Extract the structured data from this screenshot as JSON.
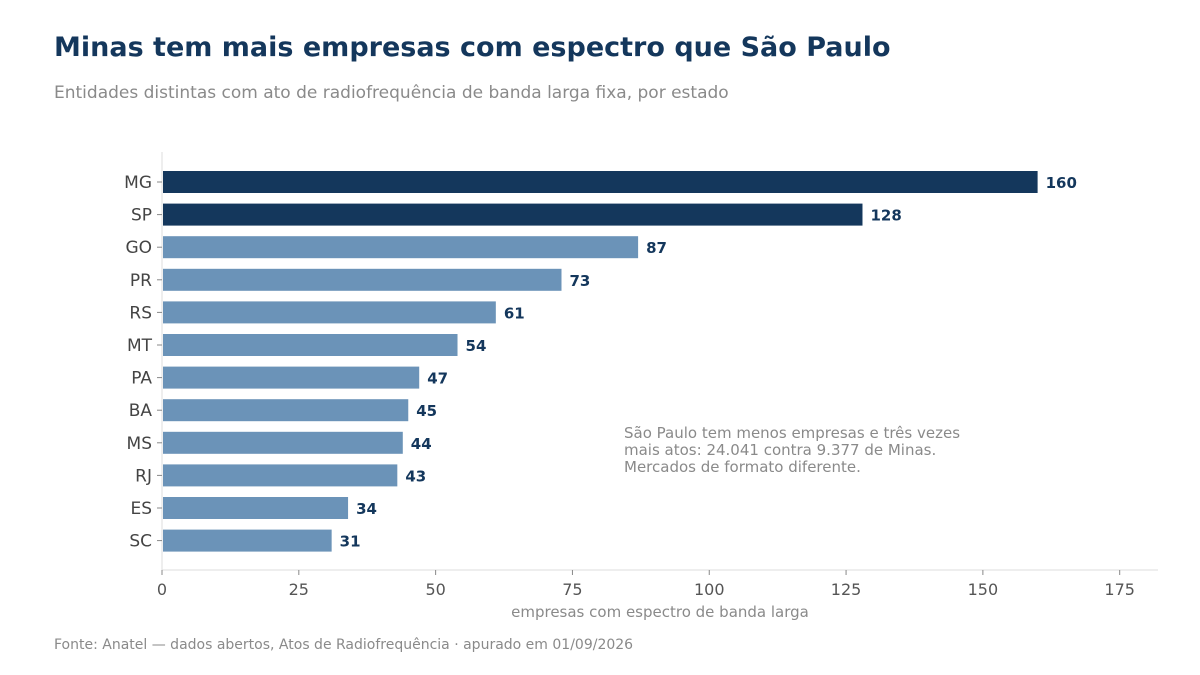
{
  "header": {
    "title": "Minas tem mais empresas com espectro que São Paulo",
    "subtitle": "Entidades distintas com ato de radiofrequência de banda larga fixa, por estado"
  },
  "footer": {
    "source": "Fonte: Anatel — dados abertos, Atos de Radiofrequência · apurado em 01/09/2026"
  },
  "colors": {
    "highlight": "#14375c",
    "default": "#6b93b8"
  },
  "chart_data": {
    "type": "bar",
    "orientation": "horizontal",
    "categories": [
      "MG",
      "SP",
      "GO",
      "PR",
      "RS",
      "MT",
      "PA",
      "BA",
      "MS",
      "RJ",
      "ES",
      "SC"
    ],
    "values": [
      160,
      128,
      87,
      73,
      61,
      54,
      47,
      45,
      44,
      43,
      34,
      31
    ],
    "highlighted": [
      "MG",
      "SP"
    ],
    "xlabel": "empresas com espectro de banda larga",
    "xlim": [
      0,
      182
    ],
    "xticks": [
      0,
      25,
      50,
      75,
      100,
      125,
      150,
      175
    ],
    "grid": false,
    "data_labels": true,
    "annotation": [
      "São Paulo tem menos empresas e três vezes",
      "mais atos: 24.041 contra 9.377 de Minas.",
      "Mercados de formato diferente."
    ]
  }
}
